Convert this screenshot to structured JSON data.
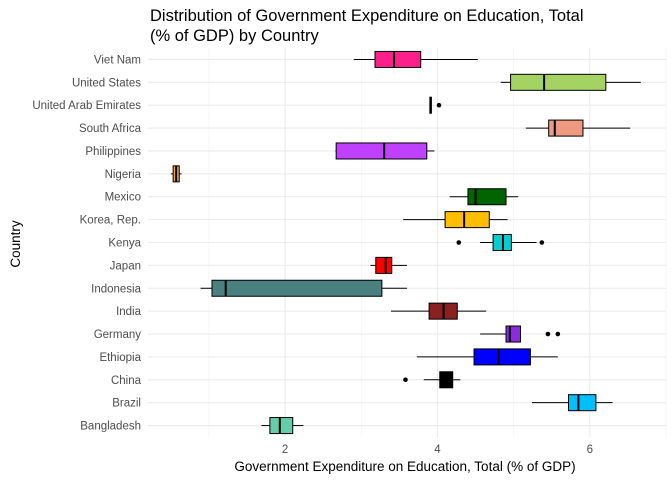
{
  "chart_data": {
    "type": "boxplot",
    "orientation": "horizontal",
    "title_lines": [
      "Distribution of Government Expenditure on Education, Total",
      "(% of GDP) by Country"
    ],
    "xlabel": "Government Expenditure on Education, Total (% of GDP)",
    "ylabel": "Country",
    "xlim": [
      0.2,
      7.0
    ],
    "x_ticks": [
      2,
      4,
      6
    ],
    "grid": true,
    "legend": "none",
    "categories": [
      "Viet Nam",
      "United States",
      "United Arab Emirates",
      "South Africa",
      "Philippines",
      "Nigeria",
      "Mexico",
      "Korea, Rep.",
      "Kenya",
      "Japan",
      "Indonesia",
      "India",
      "Germany",
      "Ethiopia",
      "China",
      "Brazil",
      "Bangladesh"
    ],
    "boxes": [
      {
        "country": "Viet Nam",
        "whisker_low": 2.9,
        "q1": 3.18,
        "median": 3.43,
        "q3": 3.78,
        "whisker_high": 4.53,
        "outliers": [],
        "color": "#ff1f8a"
      },
      {
        "country": "United States",
        "whisker_low": 4.83,
        "q1": 4.96,
        "median": 5.4,
        "q3": 6.21,
        "whisker_high": 6.67,
        "outliers": [],
        "color": "#a5d363"
      },
      {
        "country": "United Arab Emirates",
        "whisker_low": 3.9,
        "q1": 3.9,
        "median": 3.91,
        "q3": 3.92,
        "whisker_high": 3.92,
        "outliers": [
          4.02
        ],
        "color": "#666666"
      },
      {
        "country": "South Africa",
        "whisker_low": 5.16,
        "q1": 5.46,
        "median": 5.54,
        "q3": 5.91,
        "whisker_high": 6.53,
        "outliers": [],
        "color": "#ee9a80"
      },
      {
        "country": "Philippines",
        "whisker_low": 2.66,
        "q1": 2.67,
        "median": 3.3,
        "q3": 3.86,
        "whisker_high": 3.96,
        "outliers": [],
        "color": "#bf40ff"
      },
      {
        "country": "Nigeria",
        "whisker_low": 0.5,
        "q1": 0.53,
        "median": 0.57,
        "q3": 0.61,
        "whisker_high": 0.64,
        "outliers": [],
        "color": "#f4a24a"
      },
      {
        "country": "Mexico",
        "whisker_low": 4.16,
        "q1": 4.4,
        "median": 4.5,
        "q3": 4.9,
        "whisker_high": 5.06,
        "outliers": [],
        "color": "#006400"
      },
      {
        "country": "Korea, Rep.",
        "whisker_low": 3.55,
        "q1": 4.1,
        "median": 4.35,
        "q3": 4.68,
        "whisker_high": 4.92,
        "outliers": [],
        "color": "#ffbf00"
      },
      {
        "country": "Kenya",
        "whisker_low": 4.56,
        "q1": 4.73,
        "median": 4.86,
        "q3": 4.97,
        "whisker_high": 5.3,
        "outliers": [
          4.28,
          5.37
        ],
        "color": "#00ced1"
      },
      {
        "country": "Japan",
        "whisker_low": 3.12,
        "q1": 3.19,
        "median": 3.32,
        "q3": 3.4,
        "whisker_high": 3.6,
        "outliers": [],
        "color": "#ff0000"
      },
      {
        "country": "Indonesia",
        "whisker_low": 0.89,
        "q1": 1.04,
        "median": 1.22,
        "q3": 3.27,
        "whisker_high": 3.6,
        "outliers": [],
        "color": "#4a8080"
      },
      {
        "country": "India",
        "whisker_low": 3.39,
        "q1": 3.89,
        "median": 4.08,
        "q3": 4.26,
        "whisker_high": 4.64,
        "outliers": [],
        "color": "#8b2020"
      },
      {
        "country": "Germany",
        "whisker_low": 4.56,
        "q1": 4.9,
        "median": 4.95,
        "q3": 5.09,
        "whisker_high": 5.09,
        "outliers": [
          5.45,
          5.58
        ],
        "color": "#8a2be2"
      },
      {
        "country": "Ethiopia",
        "whisker_low": 3.73,
        "q1": 4.48,
        "median": 4.8,
        "q3": 5.22,
        "whisker_high": 5.58,
        "outliers": [],
        "color": "#0000ff"
      },
      {
        "country": "China",
        "whisker_low": 3.82,
        "q1": 4.03,
        "median": 4.11,
        "q3": 4.2,
        "whisker_high": 4.3,
        "outliers": [
          3.58
        ],
        "color": "#000000"
      },
      {
        "country": "Brazil",
        "whisker_low": 5.24,
        "q1": 5.72,
        "median": 5.85,
        "q3": 6.08,
        "whisker_high": 6.3,
        "outliers": [],
        "color": "#00bfff"
      },
      {
        "country": "Bangladesh",
        "whisker_low": 1.69,
        "q1": 1.8,
        "median": 1.93,
        "q3": 2.1,
        "whisker_high": 2.24,
        "outliers": [],
        "color": "#66cdaa"
      }
    ]
  }
}
